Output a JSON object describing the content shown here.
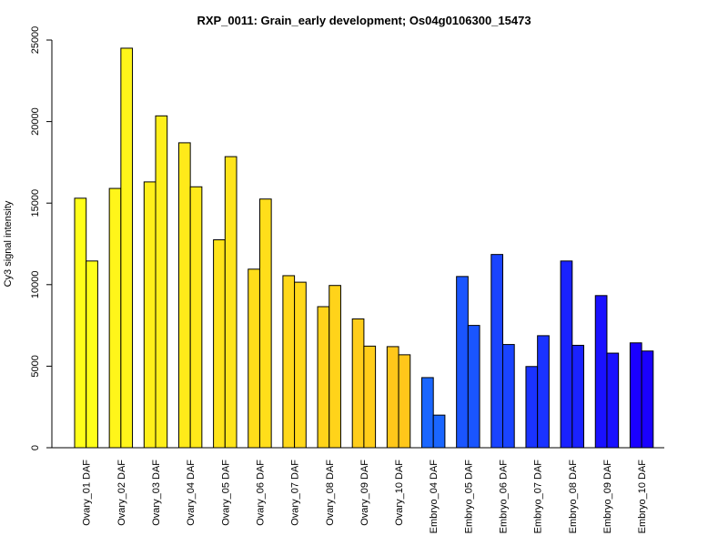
{
  "chart_data": {
    "type": "bar",
    "title": "RXP_0011: Grain_early development; Os04g0106300_15473",
    "xlabel": "",
    "ylabel": "Cy3 signal intensity",
    "ylim": [
      0,
      25000
    ],
    "yticks": [
      0,
      5000,
      10000,
      15000,
      20000,
      25000
    ],
    "yticks_text": [
      "0",
      "5000",
      "10000",
      "15000",
      "20000",
      "25000"
    ],
    "grid": false,
    "legend": "none",
    "categories": [
      "Ovary_01 DAF",
      "Ovary_02 DAF",
      "Ovary_03 DAF",
      "Ovary_04 DAF",
      "Ovary_05 DAF",
      "Ovary_06 DAF",
      "Ovary_07 DAF",
      "Ovary_08 DAF",
      "Ovary_09 DAF",
      "Ovary_10 DAF",
      "Embryo_04 DAF",
      "Embryo_05 DAF",
      "Embryo_06 DAF",
      "Embryo_07 DAF",
      "Embryo_08 DAF",
      "Embryo_09 DAF",
      "Embryo_10 DAF"
    ],
    "bar_colors": [
      "#ffff1a",
      "#fff51a",
      "#ffef1a",
      "#ffea1a",
      "#ffe41a",
      "#ffde1a",
      "#ffd81a",
      "#ffd31a",
      "#ffcd1a",
      "#ffc71a",
      "#1a66ff",
      "#1a55ff",
      "#1a44ff",
      "#1a33ff",
      "#1a22ff",
      "#1a11ff",
      "#1a00ff"
    ],
    "series": [
      {
        "values": [
          15300,
          15900,
          16300,
          18700,
          12750,
          10950,
          10550,
          8650,
          7900,
          6200,
          4300,
          10500,
          11850,
          4980,
          11450,
          9330,
          6430
        ]
      },
      {
        "values": [
          11450,
          24500,
          20350,
          16000,
          17850,
          15250,
          10150,
          9950,
          6230,
          5700,
          2000,
          7500,
          6330,
          6870,
          6280,
          5800,
          5930
        ]
      }
    ]
  }
}
